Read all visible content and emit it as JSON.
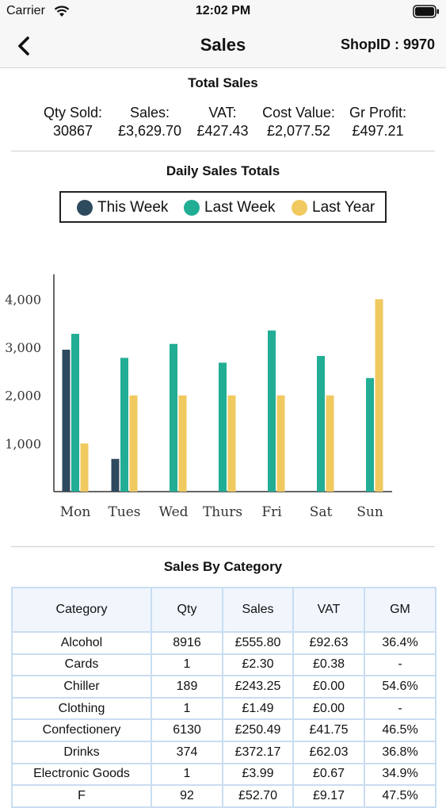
{
  "status_bar": {
    "carrier": "Carrier",
    "time": "12:02 PM"
  },
  "nav": {
    "title": "Sales",
    "shop_id": "ShopID : 9970",
    "back_icon": "chevron-left-icon"
  },
  "total_sales": {
    "title": "Total Sales",
    "metrics": [
      {
        "label": "Qty Sold:",
        "value": "30867"
      },
      {
        "label": "Sales:",
        "value": "£3,629.70"
      },
      {
        "label": "VAT:",
        "value": "£427.43"
      },
      {
        "label": "Cost Value:",
        "value": "£2,077.52"
      },
      {
        "label": "Gr Profit:",
        "value": "£497.21"
      }
    ]
  },
  "daily_sales": {
    "title": "Daily Sales Totals"
  },
  "chart_data": {
    "type": "bar",
    "categories": [
      "Mon",
      "Tues",
      "Wed",
      "Thurs",
      "Fri",
      "Sat",
      "Sun"
    ],
    "series": [
      {
        "name": "This Week",
        "color": "#2e4a5e",
        "values": [
          2950,
          680,
          0,
          0,
          0,
          0,
          0
        ]
      },
      {
        "name": "Last Week",
        "color": "#22ad95",
        "values": [
          3280,
          2780,
          3070,
          2680,
          3350,
          2820,
          2360
        ]
      },
      {
        "name": "Last Year",
        "color": "#f0c95f",
        "values": [
          1000,
          2000,
          2000,
          2000,
          2000,
          2000,
          4000
        ]
      }
    ],
    "yticks": [
      "1,000",
      "2,000",
      "3,000",
      "4,000"
    ],
    "ylim": [
      0,
      4450
    ],
    "legend": "top",
    "grid": false
  },
  "category_table": {
    "title": "Sales By Category",
    "headers": [
      "Category",
      "Qty",
      "Sales",
      "VAT",
      "GM"
    ],
    "rows": [
      [
        "Alcohol",
        "8916",
        "£555.80",
        "£92.63",
        "36.4%"
      ],
      [
        "Cards",
        "1",
        "£2.30",
        "£0.38",
        "-"
      ],
      [
        "Chiller",
        "189",
        "£243.25",
        "£0.00",
        "54.6%"
      ],
      [
        "Clothing",
        "1",
        "£1.49",
        "£0.00",
        "-"
      ],
      [
        "Confectionery",
        "6130",
        "£250.49",
        "£41.75",
        "46.5%"
      ],
      [
        "Drinks",
        "374",
        "£372.17",
        "£62.03",
        "36.8%"
      ],
      [
        "Electronic Goods",
        "1",
        "£3.99",
        "£0.67",
        "34.9%"
      ],
      [
        "F",
        "92",
        "£52.70",
        "£9.17",
        "47.5%"
      ]
    ]
  }
}
